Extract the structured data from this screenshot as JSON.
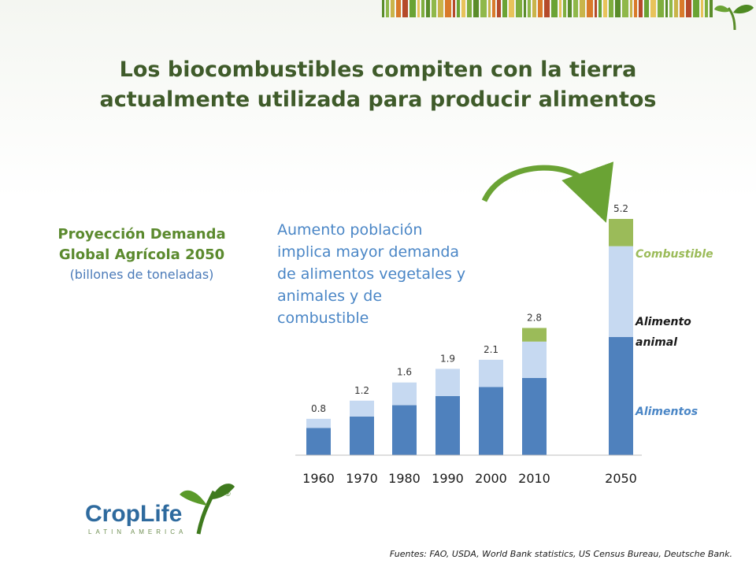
{
  "slide": {
    "title_line1": "Los biocombustibles compiten con la tierra",
    "title_line2": "actualmente utilizada para producir alimentos",
    "subtitle_line1": "Proyección Demanda",
    "subtitle_line2": "Global Agrícola 2050",
    "subtitle_unit": "(billones de toneladas)",
    "annotation_lines": [
      "Aumento población",
      "implica mayor demanda",
      "de alimentos vegetales y",
      "animales y de",
      "combustible"
    ],
    "source": "Fuentes: FAO, USDA, World Bank statistics, US Census Bureau, Deutsche Bank.",
    "logo_text": "CropLife",
    "logo_subtext": "LATIN AMERICA",
    "logo_mark": "®"
  },
  "chart_data": {
    "type": "bar",
    "stacked": true,
    "categories": [
      "1960",
      "1970",
      "1980",
      "1990",
      "2000",
      "2010",
      "2050"
    ],
    "totals": [
      "0.8",
      "1.2",
      "1.6",
      "1.9",
      "2.1",
      "2.8",
      "5.2"
    ],
    "series": [
      {
        "name": "Alimentos",
        "values": [
          0.6,
          0.85,
          1.1,
          1.3,
          1.5,
          1.7,
          2.6
        ],
        "color": "#4f81bd"
      },
      {
        "name": "Alimento animal",
        "values": [
          0.2,
          0.35,
          0.5,
          0.6,
          0.6,
          0.8,
          2.0
        ],
        "color": "#c6d9f1"
      },
      {
        "name": "Combustible",
        "values": [
          0,
          0,
          0,
          0,
          0,
          0.3,
          0.6
        ],
        "color": "#9bbb59"
      }
    ],
    "legend": [
      "Combustible",
      "Alimento animal",
      "Alimentos"
    ],
    "legend_placement": "right",
    "grid": false
  }
}
